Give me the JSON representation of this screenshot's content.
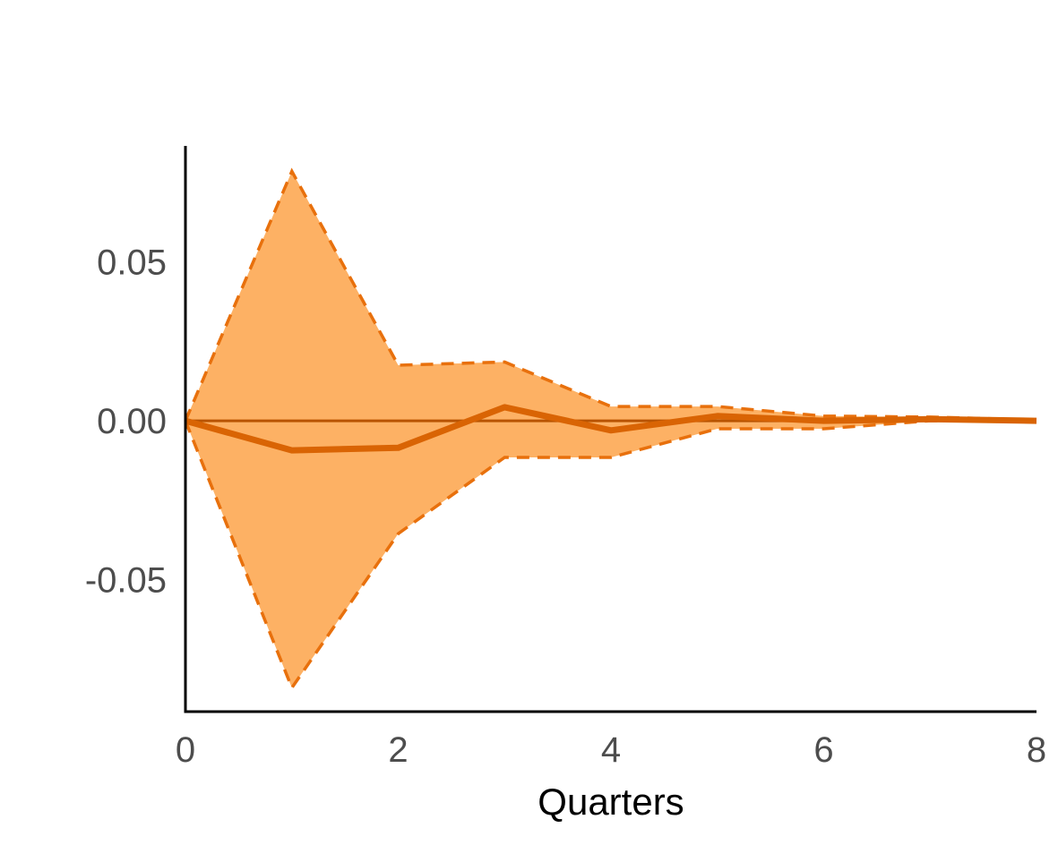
{
  "chart_data": {
    "type": "area",
    "title": "",
    "xlabel": "Quarters",
    "ylabel": "",
    "xlim": [
      0,
      8
    ],
    "ylim": [
      -0.0915,
      0.0865
    ],
    "x_ticks": [
      0,
      2,
      4,
      6,
      8
    ],
    "y_ticks": [
      0.05,
      0.0,
      -0.05
    ],
    "x_tick_labels": [
      "0",
      "2",
      "4",
      "6",
      "8"
    ],
    "y_tick_labels": [
      "0.05",
      "0.00",
      "-0.05"
    ],
    "grid": false,
    "legend": "none",
    "zero_line": true,
    "x": [
      0,
      1,
      2,
      3,
      4,
      5,
      6,
      7,
      8
    ],
    "series": [
      {
        "role": "estimate",
        "values": [
          0.0,
          -0.0093,
          -0.0085,
          0.0043,
          -0.003,
          0.0015,
          0.0,
          0.0005,
          0.0
        ]
      },
      {
        "role": "upper",
        "values": [
          0.0,
          0.0785,
          0.0175,
          0.0185,
          0.0045,
          0.0045,
          0.0015,
          0.0012,
          0.0003
        ]
      },
      {
        "role": "lower",
        "values": [
          0.0,
          -0.084,
          -0.0355,
          -0.0115,
          -0.0115,
          -0.0025,
          -0.0025,
          0.0,
          0.0
        ]
      }
    ],
    "colors": {
      "band_fill": "#fdb164",
      "band_edge": "#e8700c",
      "estimate": "#d96404",
      "zero_line": "#b85400",
      "axis": "#000000"
    }
  }
}
